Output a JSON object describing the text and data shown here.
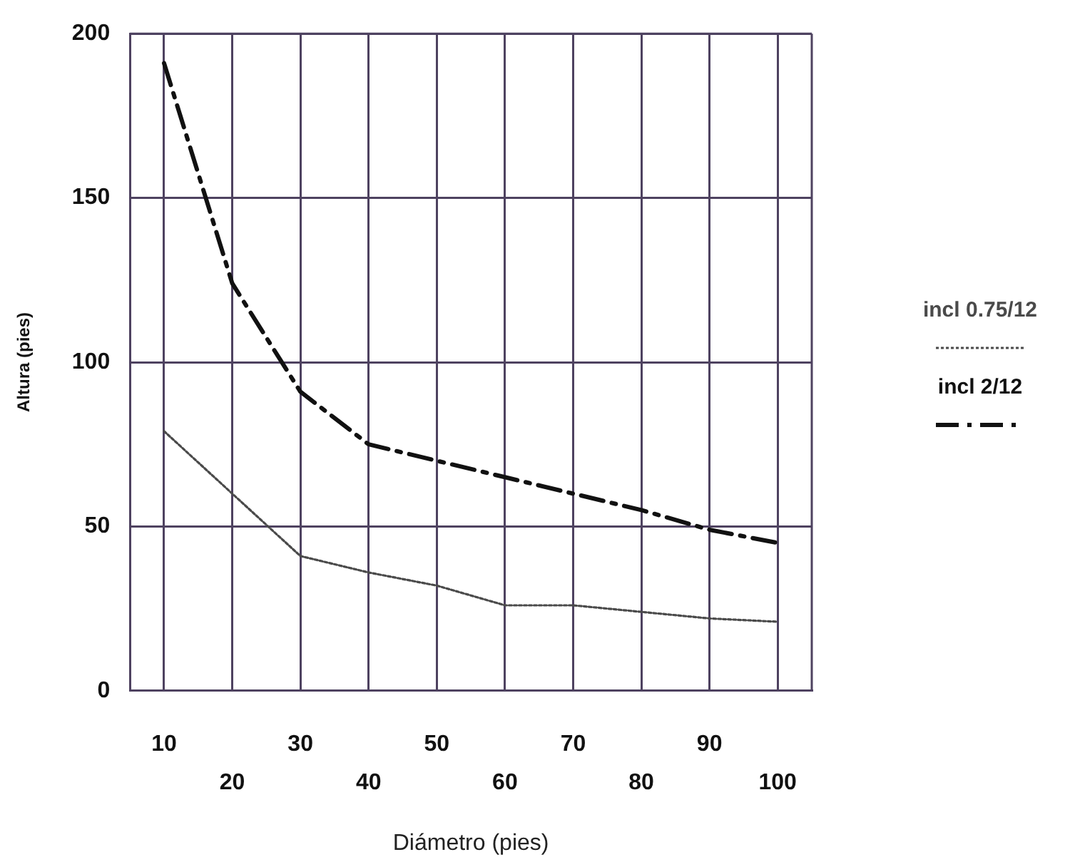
{
  "chart_data": {
    "type": "line",
    "xlabel": "Diámetro (pies)",
    "ylabel": "Altura (pies)",
    "categories": [
      "10",
      "20",
      "30",
      "40",
      "50",
      "60",
      "70",
      "80",
      "90",
      "100"
    ],
    "series": [
      {
        "name": "incl 0.75/12",
        "color": "#4a4a4a",
        "line_style": "dotted",
        "values": [
          79,
          60,
          41,
          36,
          32,
          26,
          26,
          24,
          22,
          21
        ]
      },
      {
        "name": "incl 2/12",
        "color": "#111111",
        "line_style": "dashed",
        "values": [
          191,
          124,
          91,
          75,
          70,
          65,
          60,
          55,
          49,
          45
        ]
      }
    ],
    "ylim": [
      0,
      200
    ],
    "yticks": [
      0,
      50,
      100,
      150,
      200
    ],
    "grid": true,
    "legend": "right"
  }
}
